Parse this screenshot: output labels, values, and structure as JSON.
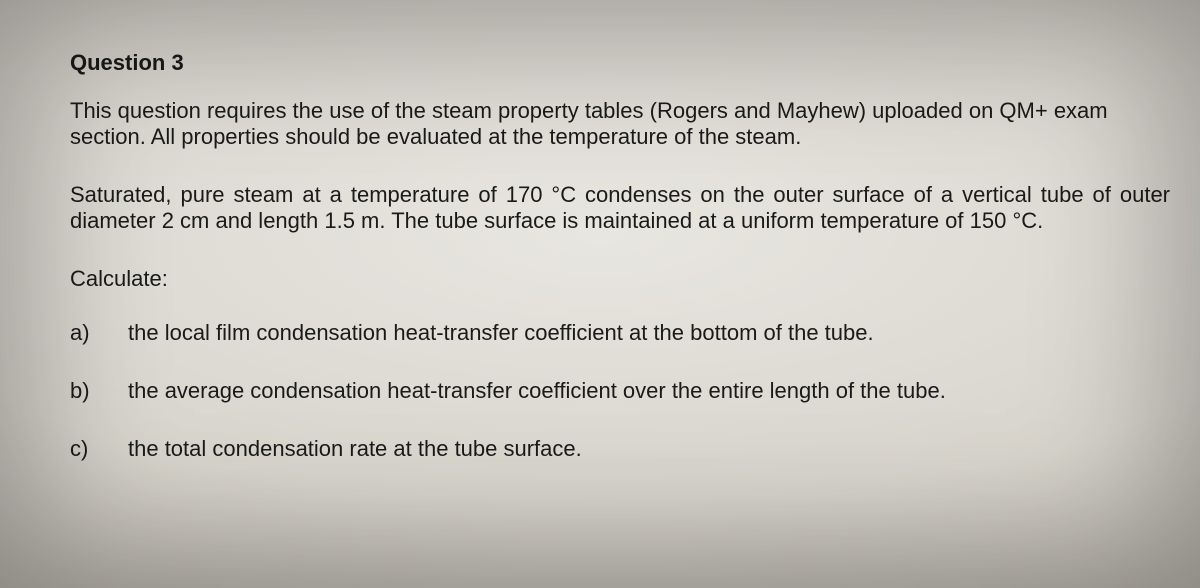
{
  "question": {
    "title": "Question 3",
    "intro": "This question requires the use of the steam property tables (Rogers and Mayhew) uploaded on QM+ exam section. All properties should be evaluated at the temperature of the steam.",
    "setup": "Saturated, pure steam at a temperature of 170 °C condenses on the outer surface of a vertical tube of outer diameter 2 cm and length 1.5 m. The tube surface is maintained at a uniform temperature of 150 °C.",
    "calc_label": "Calculate:",
    "parts": [
      {
        "label": "a)",
        "text": "the local film condensation heat-transfer coefficient at the bottom of the tube."
      },
      {
        "label": "b)",
        "text": "the average condensation heat-transfer coefficient over the entire length of the tube."
      },
      {
        "label": "c)",
        "text": "the total condensation rate at the tube surface."
      }
    ]
  },
  "style": {
    "text_color": "#1a1a1a",
    "background_center": "#e8e6e0",
    "background_edge": "#8a867c",
    "font_family": "Arial",
    "title_fontsize_pt": 17,
    "body_fontsize_pt": 17,
    "title_weight": "bold"
  }
}
